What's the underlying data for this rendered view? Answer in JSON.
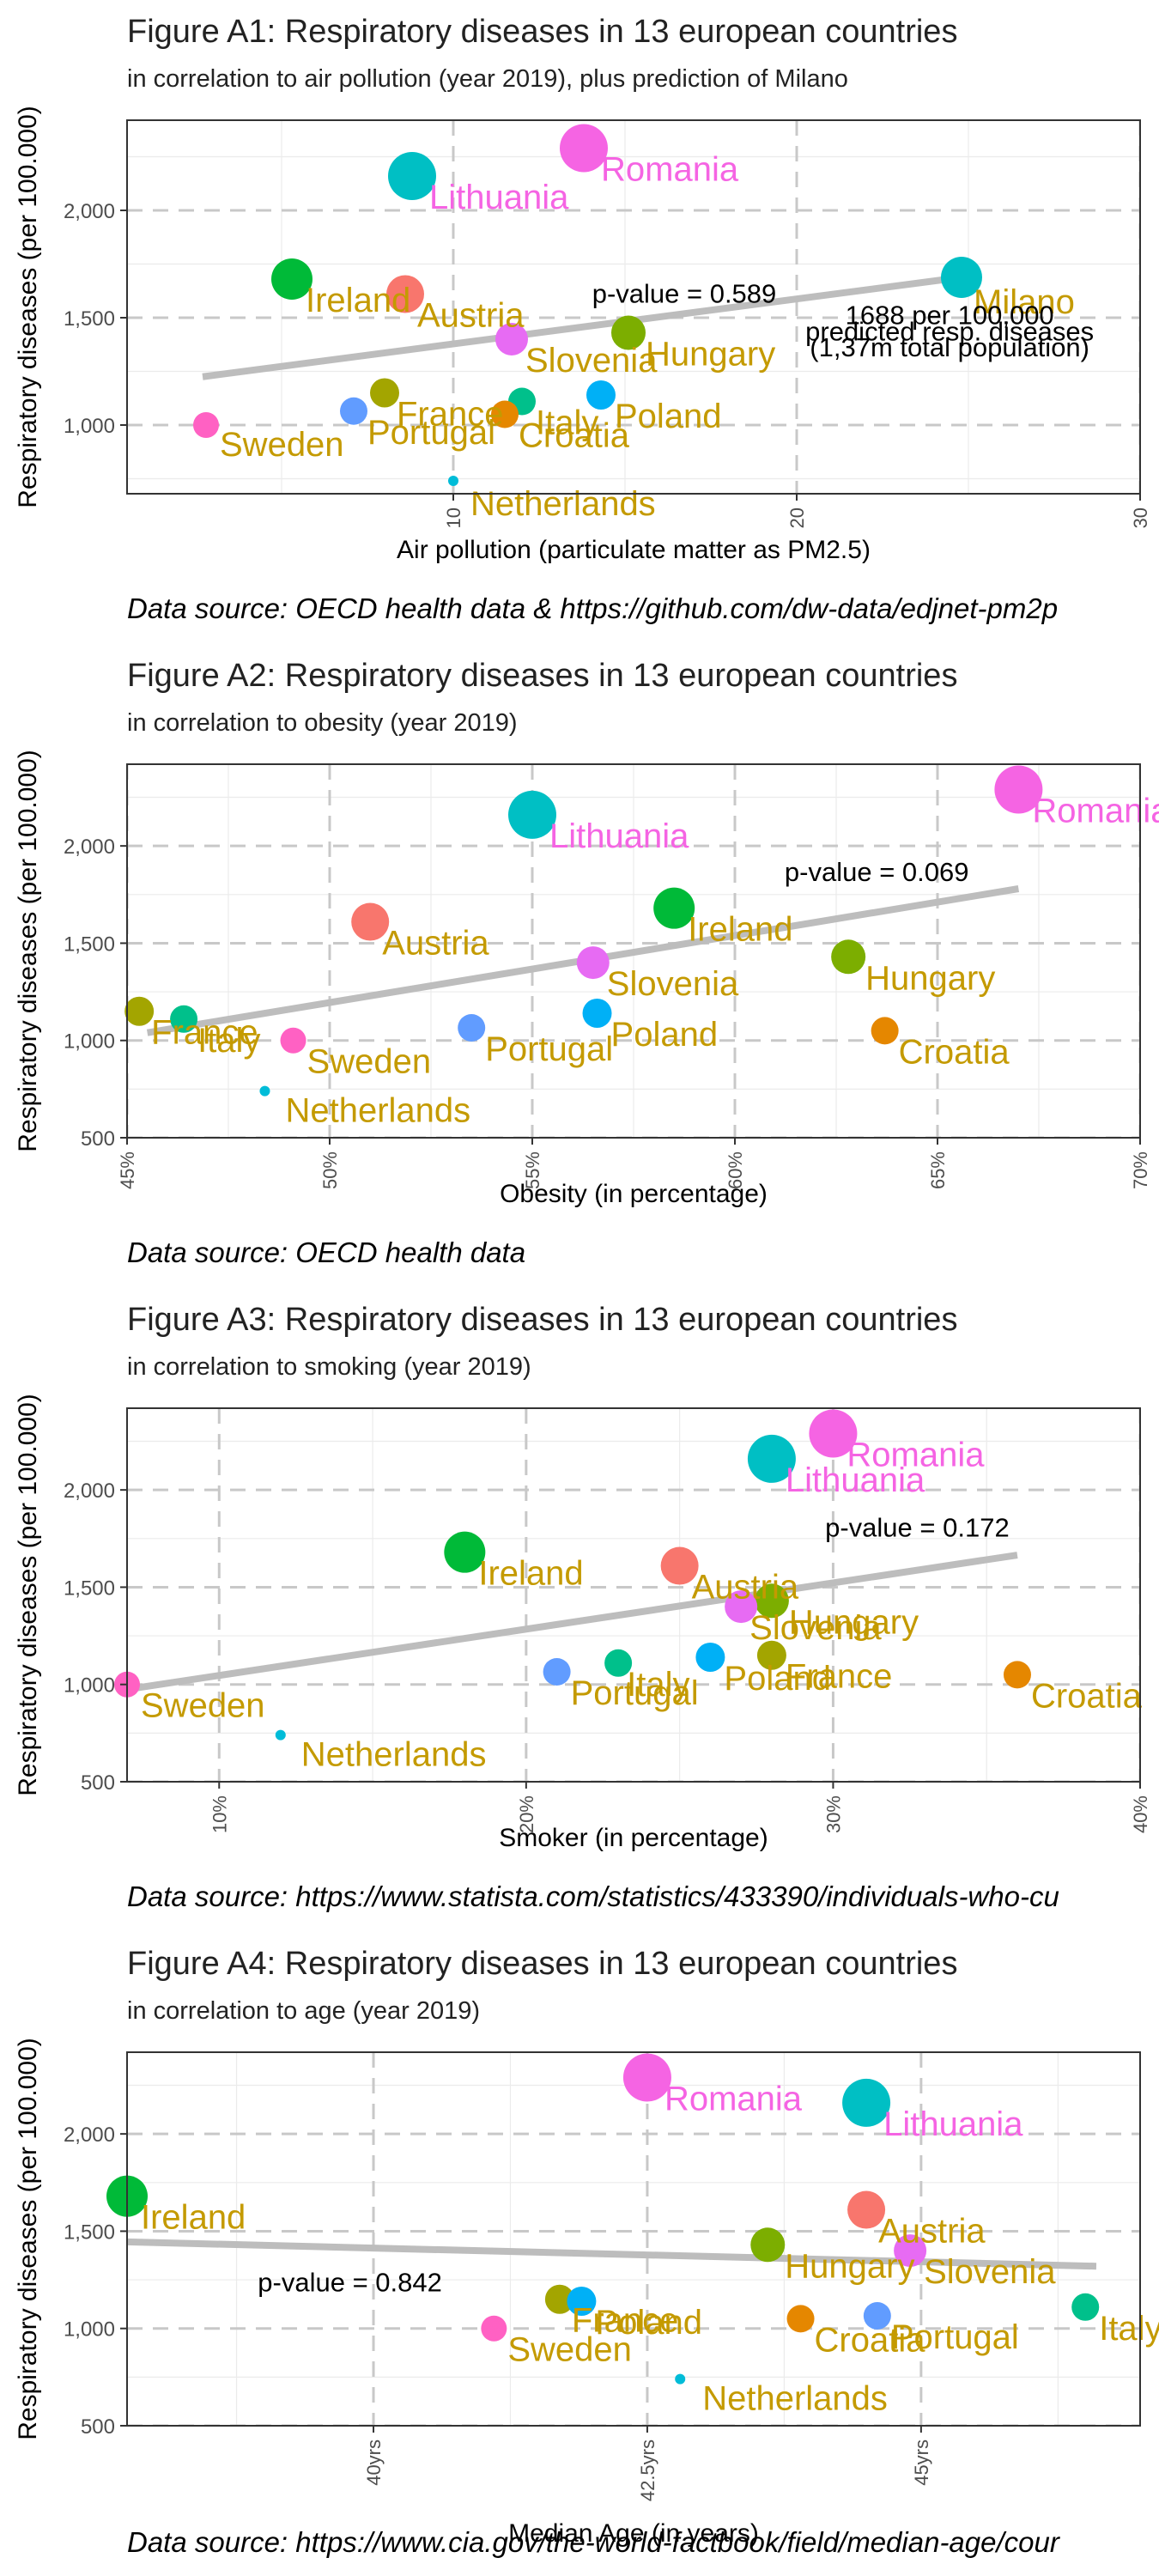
{
  "charts": [
    {
      "title": "Figure A1: Respiratory diseases in 13 european countries",
      "subtitle": "in correlation to air pollution (year 2019), plus prediction of Milano",
      "source": "Data source: OECD health data & https://github.com/dw-data/edjnet-pm2p",
      "annotations": [
        "p-value = 0.589",
        "1688 per 100,000",
        "predicted resp. diseases",
        "(1,37m total population)"
      ]
    },
    {
      "title": "Figure A2: Respiratory diseases in 13 european countries",
      "subtitle": "in correlation to obesity (year 2019)",
      "source": "Data source: OECD health data",
      "annotations": [
        "p-value = 0.069"
      ]
    },
    {
      "title": "Figure A3: Respiratory diseases in 13 european countries",
      "subtitle": "in correlation to smoking (year 2019)",
      "source": "Data source: https://www.statista.com/statistics/433390/individuals-who-cu",
      "annotations": [
        "p-value = 0.172"
      ]
    },
    {
      "title": "Figure A4: Respiratory diseases in 13 european countries",
      "subtitle": "in correlation to age (year 2019)",
      "source": "Data source: https://www.cia.gov/the-world-factbook/field/median-age/cour",
      "annotations": [
        "p-value = 0.842"
      ]
    }
  ],
  "chart_data": [
    {
      "type": "scatter",
      "title": "Figure A1: Respiratory diseases in 13 european countries",
      "xlabel": "Air pollution (particulate matter as PM2.5)",
      "ylabel": "Respiratory diseases (per 100.000)",
      "xlim": [
        0.5,
        30
      ],
      "ylim": [
        680,
        2420
      ],
      "xticks": [
        10,
        20,
        30
      ],
      "xtick_labels": [
        "10",
        "20",
        "30"
      ],
      "yticks": [
        1000,
        1500,
        2000
      ],
      "ytick_labels": [
        "1,000",
        "1,500",
        "2,000"
      ],
      "trend": {
        "x1": 2.7,
        "y1": 1225,
        "x2": 24.8,
        "y2": 1688
      },
      "points": [
        {
          "label": "Romania",
          "x": 13.8,
          "y": 2290,
          "color": "#F564E3"
        },
        {
          "label": "Lithuania",
          "x": 8.8,
          "y": 2160,
          "color": "#00BFC4"
        },
        {
          "label": "Milano",
          "x": 24.8,
          "y": 1688,
          "color": "#00BFC4"
        },
        {
          "label": "Ireland",
          "x": 5.3,
          "y": 1680,
          "color": "#00BA38"
        },
        {
          "label": "Austria",
          "x": 8.6,
          "y": 1610,
          "color": "#F8766D"
        },
        {
          "label": "Hungary",
          "x": 15.1,
          "y": 1430,
          "color": "#7CAE00"
        },
        {
          "label": "Slovenia",
          "x": 11.7,
          "y": 1400,
          "color": "#E76BF3"
        },
        {
          "label": "France",
          "x": 8.0,
          "y": 1150,
          "color": "#A3A500"
        },
        {
          "label": "Poland",
          "x": 14.3,
          "y": 1140,
          "color": "#00B0F6"
        },
        {
          "label": "Italy",
          "x": 12.0,
          "y": 1110,
          "color": "#00C08B"
        },
        {
          "label": "Portugal",
          "x": 7.1,
          "y": 1065,
          "color": "#619CFF"
        },
        {
          "label": "Croatia",
          "x": 11.5,
          "y": 1050,
          "color": "#E58700"
        },
        {
          "label": "Sweden",
          "x": 2.8,
          "y": 1000,
          "color": "#FF61C3"
        },
        {
          "label": "Netherlands",
          "x": 10.0,
          "y": 740,
          "color": "#00BCD8"
        }
      ]
    },
    {
      "type": "scatter",
      "title": "Figure A2: Respiratory diseases in 13 european countries",
      "xlabel": "Obesity (in percentage)",
      "ylabel": "Respiratory diseases (per 100.000)",
      "xlim": [
        45,
        70
      ],
      "ylim": [
        500,
        2420
      ],
      "xticks": [
        45,
        50,
        55,
        60,
        65,
        70
      ],
      "xtick_labels": [
        "45%",
        "50%",
        "55%",
        "60%",
        "65%",
        "70%"
      ],
      "yticks": [
        500,
        1000,
        1500,
        2000
      ],
      "ytick_labels": [
        "500",
        "1,000",
        "1,500",
        "2,000"
      ],
      "trend": {
        "x1": 45.5,
        "y1": 1040,
        "x2": 67.0,
        "y2": 1780
      },
      "points": [
        {
          "label": "Romania",
          "x": 67.0,
          "y": 2290,
          "color": "#F564E3"
        },
        {
          "label": "Lithuania",
          "x": 55.0,
          "y": 2160,
          "color": "#00BFC4"
        },
        {
          "label": "Ireland",
          "x": 58.5,
          "y": 1680,
          "color": "#00BA38"
        },
        {
          "label": "Austria",
          "x": 51.0,
          "y": 1610,
          "color": "#F8766D"
        },
        {
          "label": "Hungary",
          "x": 62.8,
          "y": 1430,
          "color": "#7CAE00"
        },
        {
          "label": "Slovenia",
          "x": 56.5,
          "y": 1400,
          "color": "#E76BF3"
        },
        {
          "label": "France",
          "x": 45.3,
          "y": 1150,
          "color": "#A3A500"
        },
        {
          "label": "Poland",
          "x": 56.6,
          "y": 1140,
          "color": "#00B0F6"
        },
        {
          "label": "Italy",
          "x": 46.4,
          "y": 1110,
          "color": "#00C08B"
        },
        {
          "label": "Portugal",
          "x": 53.5,
          "y": 1065,
          "color": "#619CFF"
        },
        {
          "label": "Croatia",
          "x": 63.7,
          "y": 1050,
          "color": "#E58700"
        },
        {
          "label": "Sweden",
          "x": 49.1,
          "y": 1000,
          "color": "#FF61C3"
        },
        {
          "label": "Netherlands",
          "x": 48.4,
          "y": 740,
          "color": "#00BCD8"
        }
      ]
    },
    {
      "type": "scatter",
      "title": "Figure A3: Respiratory diseases in 13 european countries",
      "xlabel": "Smoker (in percentage)",
      "ylabel": "Respiratory diseases (per 100.000)",
      "xlim": [
        7,
        40
      ],
      "ylim": [
        500,
        2420
      ],
      "xticks": [
        10,
        20,
        30,
        40
      ],
      "xtick_labels": [
        "10%",
        "20%",
        "30%",
        "40%"
      ],
      "yticks": [
        500,
        1000,
        1500,
        2000
      ],
      "ytick_labels": [
        "500",
        "1,000",
        "1,500",
        "2,000"
      ],
      "trend": {
        "x1": 7.0,
        "y1": 975,
        "x2": 36.0,
        "y2": 1665
      },
      "points": [
        {
          "label": "Romania",
          "x": 30.0,
          "y": 2290,
          "color": "#F564E3"
        },
        {
          "label": "Lithuania",
          "x": 28.0,
          "y": 2160,
          "color": "#00BFC4"
        },
        {
          "label": "Ireland",
          "x": 18.0,
          "y": 1680,
          "color": "#00BA38"
        },
        {
          "label": "Austria",
          "x": 25.0,
          "y": 1610,
          "color": "#F8766D"
        },
        {
          "label": "Hungary",
          "x": 28.0,
          "y": 1430,
          "color": "#7CAE00"
        },
        {
          "label": "Slovenia",
          "x": 27.0,
          "y": 1400,
          "color": "#E76BF3"
        },
        {
          "label": "France",
          "x": 28.0,
          "y": 1150,
          "color": "#A3A500"
        },
        {
          "label": "Poland",
          "x": 26.0,
          "y": 1140,
          "color": "#00B0F6"
        },
        {
          "label": "Italy",
          "x": 23.0,
          "y": 1110,
          "color": "#00C08B"
        },
        {
          "label": "Portugal",
          "x": 21.0,
          "y": 1065,
          "color": "#619CFF"
        },
        {
          "label": "Croatia",
          "x": 36.0,
          "y": 1050,
          "color": "#E58700"
        },
        {
          "label": "Sweden",
          "x": 7.0,
          "y": 1000,
          "color": "#FF61C3"
        },
        {
          "label": "Netherlands",
          "x": 12.0,
          "y": 740,
          "color": "#00BCD8"
        }
      ]
    },
    {
      "type": "scatter",
      "title": "Figure A4: Respiratory diseases in 13 european countries",
      "xlabel": "Median Age (in years)",
      "ylabel": "Respiratory diseases (per 100.000)",
      "xlim": [
        37.75,
        47.0
      ],
      "ylim": [
        500,
        2420
      ],
      "xticks": [
        40,
        42.5,
        45
      ],
      "xtick_labels": [
        "40yrs",
        "42.5yrs",
        "45yrs"
      ],
      "yticks": [
        500,
        1000,
        1500,
        2000
      ],
      "ytick_labels": [
        "500",
        "1,000",
        "1,500",
        "2,000"
      ],
      "trend": {
        "x1": 37.75,
        "y1": 1445,
        "x2": 46.6,
        "y2": 1320
      },
      "points": [
        {
          "label": "Romania",
          "x": 42.5,
          "y": 2290,
          "color": "#F564E3"
        },
        {
          "label": "Lithuania",
          "x": 44.5,
          "y": 2160,
          "color": "#00BFC4"
        },
        {
          "label": "Ireland",
          "x": 37.75,
          "y": 1680,
          "color": "#00BA38"
        },
        {
          "label": "Austria",
          "x": 44.5,
          "y": 1610,
          "color": "#F8766D"
        },
        {
          "label": "Hungary",
          "x": 43.6,
          "y": 1430,
          "color": "#7CAE00"
        },
        {
          "label": "Slovenia",
          "x": 44.9,
          "y": 1400,
          "color": "#E76BF3"
        },
        {
          "label": "France",
          "x": 41.7,
          "y": 1150,
          "color": "#A3A500"
        },
        {
          "label": "Poland",
          "x": 41.9,
          "y": 1140,
          "color": "#00B0F6"
        },
        {
          "label": "Italy",
          "x": 46.5,
          "y": 1110,
          "color": "#00C08B"
        },
        {
          "label": "Portugal",
          "x": 44.6,
          "y": 1065,
          "color": "#619CFF"
        },
        {
          "label": "Croatia",
          "x": 43.9,
          "y": 1050,
          "color": "#E58700"
        },
        {
          "label": "Sweden",
          "x": 41.1,
          "y": 1000,
          "color": "#FF61C3"
        },
        {
          "label": "Netherlands",
          "x": 42.8,
          "y": 740,
          "color": "#00BCD8"
        }
      ]
    }
  ]
}
